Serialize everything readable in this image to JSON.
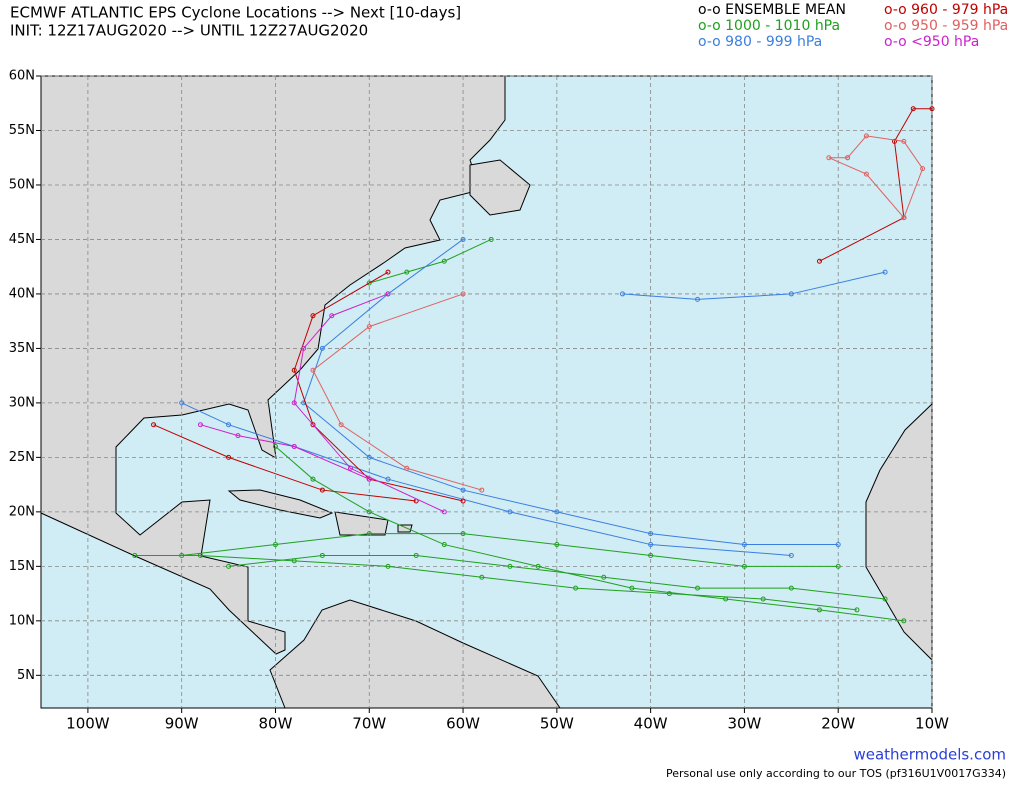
{
  "header": {
    "title_line1": "ECMWF ATLANTIC EPS Cyclone Locations --> Next [10-days]",
    "title_line2": "INIT: 12Z17AUG2020 --> UNTIL 12Z27AUG2020"
  },
  "legend": [
    {
      "label": "o-o ENSEMBLE MEAN",
      "color": "#000000"
    },
    {
      "label": "o-o 960 - 979 hPa",
      "color": "#c00000"
    },
    {
      "label": "o-o 1000 - 1010 hPa",
      "color": "#1fa01f"
    },
    {
      "label": "o-o 950 - 959 hPa",
      "color": "#e06060"
    },
    {
      "label": "o-o 980 - 999 hPa",
      "color": "#3a7fe0"
    },
    {
      "label": "o-o <950 hPa",
      "color": "#cc22cc"
    }
  ],
  "map": {
    "lonlim": [
      -105,
      -10
    ],
    "latlim": [
      2,
      60
    ],
    "latticks": [
      {
        "value": 60,
        "label": "60N"
      },
      {
        "value": 55,
        "label": "55N"
      },
      {
        "value": 50,
        "label": "50N"
      },
      {
        "value": 45,
        "label": "45N"
      },
      {
        "value": 40,
        "label": "40N"
      },
      {
        "value": 35,
        "label": "35N"
      },
      {
        "value": 30,
        "label": "30N"
      },
      {
        "value": 25,
        "label": "25N"
      },
      {
        "value": 20,
        "label": "20N"
      },
      {
        "value": 15,
        "label": "15N"
      },
      {
        "value": 10,
        "label": "10N"
      },
      {
        "value": 5,
        "label": "5N"
      }
    ],
    "lonticks": [
      {
        "value": -100,
        "label": "100W"
      },
      {
        "value": -90,
        "label": "90W"
      },
      {
        "value": -80,
        "label": "80W"
      },
      {
        "value": -70,
        "label": "70W"
      },
      {
        "value": -60,
        "label": "60W"
      },
      {
        "value": -50,
        "label": "50W"
      },
      {
        "value": -40,
        "label": "40W"
      },
      {
        "value": -30,
        "label": "30W"
      },
      {
        "value": -20,
        "label": "20W"
      },
      {
        "value": -10,
        "label": "10W"
      }
    ],
    "tracks": [
      {
        "color": "#1fa01f",
        "lon": [
          -15,
          -25,
          -35,
          -45,
          -55,
          -65,
          -75,
          -85
        ],
        "lat": [
          12,
          13,
          13,
          14,
          15,
          16,
          16,
          15
        ]
      },
      {
        "color": "#1fa01f",
        "lon": [
          -18,
          -28,
          -38,
          -48,
          -58,
          -68,
          -78,
          -88,
          -95
        ],
        "lat": [
          11,
          12,
          12.5,
          13,
          14,
          15,
          15.5,
          16,
          16
        ]
      },
      {
        "color": "#1fa01f",
        "lon": [
          -13,
          -22,
          -32,
          -42,
          -52,
          -62,
          -70,
          -76,
          -80
        ],
        "lat": [
          10,
          11,
          12,
          13,
          15,
          17,
          20,
          23,
          26
        ]
      },
      {
        "color": "#1fa01f",
        "lon": [
          -20,
          -30,
          -40,
          -50,
          -60,
          -70,
          -80,
          -90
        ],
        "lat": [
          15,
          15,
          16,
          17,
          18,
          18,
          17,
          16
        ]
      },
      {
        "color": "#1fa01f",
        "lon": [
          -57,
          -62,
          -66,
          -70
        ],
        "lat": [
          45,
          43,
          42,
          41
        ]
      },
      {
        "color": "#3a7fe0",
        "lon": [
          -20,
          -30,
          -40,
          -50,
          -60,
          -70,
          -77,
          -75,
          -68,
          -60
        ],
        "lat": [
          17,
          17,
          18,
          20,
          22,
          25,
          30,
          35,
          40,
          45
        ]
      },
      {
        "color": "#3a7fe0",
        "lon": [
          -43,
          -35,
          -25,
          -15
        ],
        "lat": [
          40,
          39.5,
          40,
          42
        ]
      },
      {
        "color": "#3a7fe0",
        "lon": [
          -25,
          -40,
          -55,
          -68,
          -78,
          -85,
          -90
        ],
        "lat": [
          16,
          17,
          20,
          23,
          26,
          28,
          30
        ]
      },
      {
        "color": "#c00000",
        "lon": [
          -60,
          -70,
          -76,
          -78,
          -76,
          -68
        ],
        "lat": [
          21,
          23,
          28,
          33,
          38,
          42
        ]
      },
      {
        "color": "#c00000",
        "lon": [
          -65,
          -75,
          -85,
          -93
        ],
        "lat": [
          21,
          22,
          25,
          28
        ]
      },
      {
        "color": "#c00000",
        "lon": [
          -22,
          -13,
          -14,
          -12,
          -10
        ],
        "lat": [
          43,
          47,
          54,
          57,
          57
        ]
      },
      {
        "color": "#e06060",
        "lon": [
          -19,
          -17,
          -13,
          -11,
          -13,
          -17,
          -21,
          -19
        ],
        "lat": [
          52.5,
          54.5,
          54,
          51.5,
          47,
          51,
          52.5,
          52.5
        ]
      },
      {
        "color": "#e06060",
        "lon": [
          -58,
          -66,
          -73,
          -76,
          -70,
          -60
        ],
        "lat": [
          22,
          24,
          28,
          33,
          37,
          40
        ]
      },
      {
        "color": "#cc22cc",
        "lon": [
          -62,
          -72,
          -78,
          -77,
          -74,
          -68
        ],
        "lat": [
          20,
          24,
          30,
          35,
          38,
          40
        ]
      },
      {
        "color": "#cc22cc",
        "lon": [
          -70,
          -78,
          -84,
          -88
        ],
        "lat": [
          23,
          26,
          27,
          28
        ]
      }
    ]
  },
  "footer": {
    "site": "weathermodels.com",
    "note": "Personal use only according to our TOS (pf316U1V0017G334)"
  }
}
